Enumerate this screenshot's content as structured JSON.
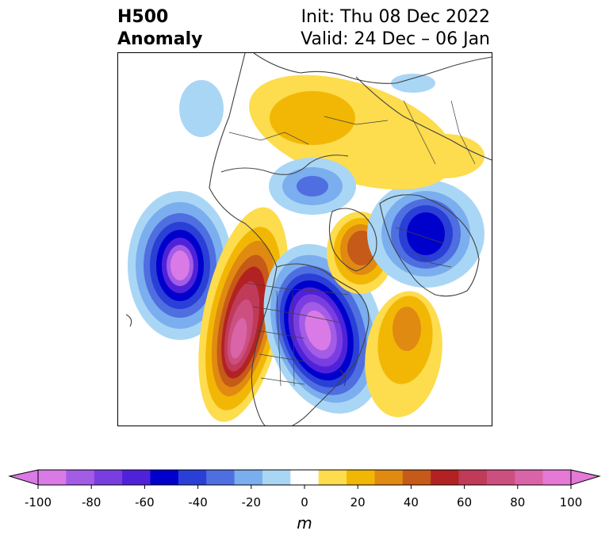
{
  "header": {
    "field_line1": "H500",
    "field_line2": "Anomaly",
    "init_text": "Init: Thu 08 Dec 2022",
    "valid_text": "Valid: 24 Dec – 06 Jan"
  },
  "colorbar": {
    "unit": "m",
    "tick_labels": [
      "-100",
      "-80",
      "-60",
      "-40",
      "-20",
      "0",
      "20",
      "40",
      "60",
      "80",
      "100"
    ],
    "levels": [
      -100,
      -90,
      -80,
      -70,
      -60,
      -50,
      -40,
      -30,
      -20,
      -10,
      10,
      20,
      30,
      40,
      50,
      60,
      70,
      80,
      90,
      100
    ],
    "colors": [
      "#d97ae6",
      "#a35ce6",
      "#7a3ee0",
      "#4f22d9",
      "#0000cc",
      "#2a3fd6",
      "#4f6ee0",
      "#7aaeee",
      "#aad6f5",
      "#ffffff",
      "#fddc4e",
      "#f2b705",
      "#e08a12",
      "#c65a18",
      "#b22222",
      "#c03a5a",
      "#cc4f80",
      "#d965a8",
      "#e678d6"
    ],
    "extend": "both"
  },
  "map": {
    "projection": "polar-stereographic",
    "field": "500 hPa geopotential height anomaly",
    "anomaly_centers": [
      {
        "region": "north-pacific",
        "sign": "negative",
        "peak_m": -95
      },
      {
        "region": "west-north-america",
        "sign": "positive",
        "peak_m": 90
      },
      {
        "region": "east-north-america",
        "sign": "negative",
        "peak_m": -100
      },
      {
        "region": "greenland",
        "sign": "positive",
        "peak_m": 55
      },
      {
        "region": "north-atlantic",
        "sign": "positive",
        "peak_m": 35
      },
      {
        "region": "europe",
        "sign": "negative",
        "peak_m": -60
      },
      {
        "region": "siberia",
        "sign": "positive",
        "peak_m": 25
      },
      {
        "region": "arctic",
        "sign": "negative",
        "peak_m": -30
      }
    ]
  }
}
